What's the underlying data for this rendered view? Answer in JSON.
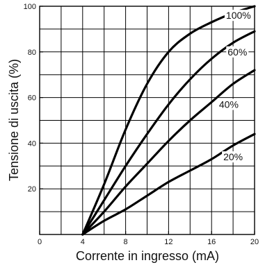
{
  "chart_data": {
    "type": "line",
    "xlabel": "Corrente in ingresso (mA)",
    "ylabel": "Tensione di uscita (%)",
    "xlim": [
      0,
      20
    ],
    "ylim": [
      0,
      100
    ],
    "x_ticks": [
      0,
      4,
      8,
      12,
      16,
      20
    ],
    "y_ticks": [
      20,
      40,
      60,
      80,
      100
    ],
    "grid": true,
    "series": [
      {
        "name": "100%",
        "points": [
          [
            4,
            0
          ],
          [
            6,
            22
          ],
          [
            8,
            46
          ],
          [
            10,
            66
          ],
          [
            12,
            80
          ],
          [
            14,
            88
          ],
          [
            16,
            93
          ],
          [
            18,
            97
          ],
          [
            20,
            100
          ]
        ],
        "label_at": [
          18.5,
          96
        ]
      },
      {
        "name": "60%",
        "points": [
          [
            4,
            0
          ],
          [
            6,
            15
          ],
          [
            8,
            30
          ],
          [
            10,
            44
          ],
          [
            12,
            57
          ],
          [
            14,
            68
          ],
          [
            16,
            77
          ],
          [
            18,
            84
          ],
          [
            20,
            89
          ]
        ],
        "label_at": [
          18.4,
          80
        ]
      },
      {
        "name": "40%",
        "points": [
          [
            4,
            0
          ],
          [
            6,
            10
          ],
          [
            8,
            21
          ],
          [
            10,
            31
          ],
          [
            12,
            41
          ],
          [
            14,
            50
          ],
          [
            16,
            58
          ],
          [
            18,
            66
          ],
          [
            20,
            72
          ]
        ],
        "label_at": [
          17.6,
          57
        ]
      },
      {
        "name": "20%",
        "points": [
          [
            4,
            0
          ],
          [
            6,
            6
          ],
          [
            8,
            11
          ],
          [
            10,
            17
          ],
          [
            12,
            23
          ],
          [
            14,
            28
          ],
          [
            16,
            33
          ],
          [
            18,
            39
          ],
          [
            20,
            44
          ]
        ],
        "label_at": [
          18.0,
          34
        ]
      }
    ]
  }
}
